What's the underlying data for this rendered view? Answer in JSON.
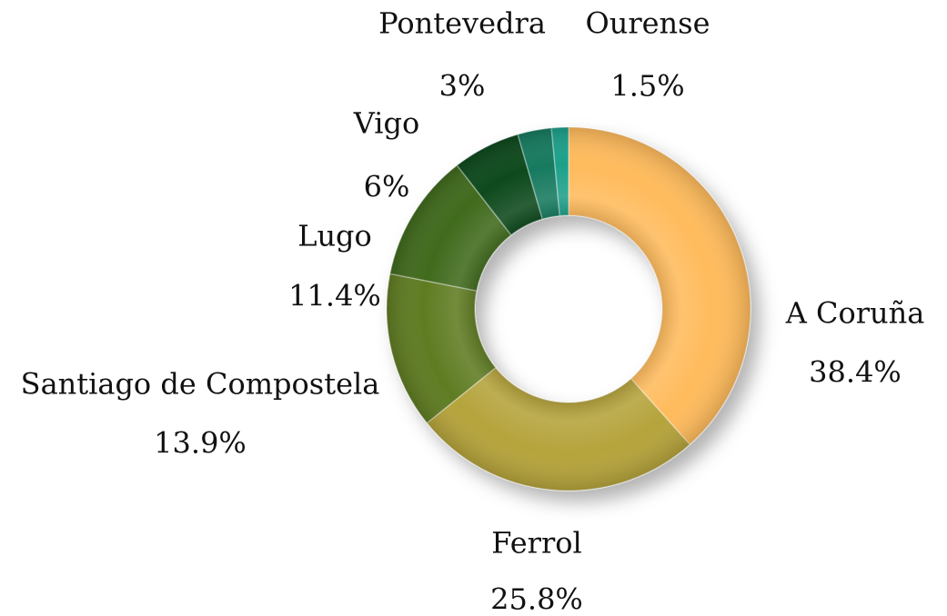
{
  "chart_data": {
    "type": "donut",
    "categories": [
      "A Coruña",
      "Ferrol",
      "Santiago de Compostela",
      "Lugo",
      "Vigo",
      "Pontevedra",
      "Ourense"
    ],
    "values": [
      38.4,
      25.8,
      13.9,
      11.4,
      6,
      3,
      1.5
    ],
    "value_labels": [
      "38.4%",
      "25.8%",
      "13.9%",
      "11.4%",
      "6%",
      "3%",
      "1.5%"
    ],
    "colors": [
      "#ffbb5c",
      "#b5a33a",
      "#5f7b24",
      "#3f6a1e",
      "#0d4a1e",
      "#137a5e",
      "#1fa08a"
    ]
  }
}
